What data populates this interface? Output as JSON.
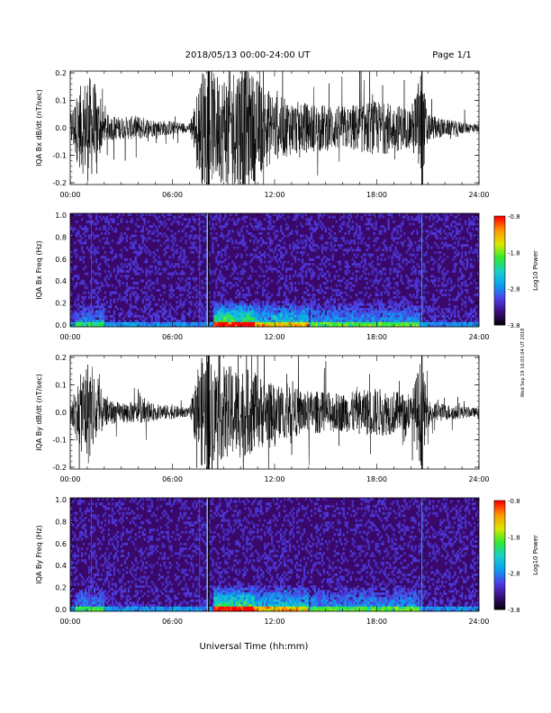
{
  "header": {
    "title": "2018/05/13  00:00-24:00 UT",
    "page": "Page 1/1",
    "side_stamp": "Wed Sep 19 16:03:04 UT 2018"
  },
  "x_axis": {
    "label": "Universal Time (hh:mm)",
    "ticks": [
      "00:00",
      "06:00",
      "12:00",
      "18:00",
      "24:00"
    ]
  },
  "colors": {
    "waveform": "#000000",
    "spectrogram_background": "#3a0868",
    "colorscale": [
      "#000000",
      "#3a0c7a",
      "#4f3ee6",
      "#0aa0f0",
      "#17d0c8",
      "#30ea30",
      "#dce600",
      "#ff9800",
      "#ff0000"
    ]
  },
  "chart_data": [
    {
      "type": "line",
      "panel": "bx-waveform",
      "ylabel": "IQA Bx dB/dt (nT/sec)",
      "ylim": [
        -0.2,
        0.2
      ],
      "y_ticks": [
        "0.2",
        "0.1",
        "0.0",
        "-0.1",
        "-0.2"
      ],
      "xlim": [
        0,
        24
      ],
      "x_unit": "hours UT",
      "envelope": {
        "x": [
          0,
          0.5,
          1,
          1.5,
          2,
          3,
          4,
          5,
          6,
          7,
          7.8,
          8.2,
          9,
          10,
          11,
          12,
          13,
          14,
          16,
          18,
          19,
          20,
          20.6,
          21,
          22,
          24
        ],
        "amplitude": [
          0.06,
          0.14,
          0.2,
          0.16,
          0.05,
          0.04,
          0.045,
          0.03,
          0.025,
          0.015,
          0.22,
          0.2,
          0.2,
          0.25,
          0.18,
          0.12,
          0.1,
          0.09,
          0.08,
          0.1,
          0.09,
          0.07,
          0.22,
          0.05,
          0.03,
          0.015
        ]
      }
    },
    {
      "type": "heatmap",
      "panel": "bx-spectrogram",
      "ylabel": "IQA Bx Freq (Hz)",
      "ylim": [
        0.0,
        1.0
      ],
      "y_ticks": [
        "1.0",
        "0.8",
        "0.6",
        "0.4",
        "0.2",
        "0.0"
      ],
      "xlim": [
        0,
        24
      ],
      "colorbar": {
        "label": "Log10 Power",
        "range": [
          -3.8,
          -0.8
        ],
        "ticks": [
          "-0.8",
          "-1.8",
          "-2.8",
          "-3.8"
        ]
      }
    },
    {
      "type": "line",
      "panel": "by-waveform",
      "ylabel": "IQA By dB/dt (nT/sec)",
      "ylim": [
        -0.2,
        0.2
      ],
      "y_ticks": [
        "0.2",
        "0.1",
        "0.0",
        "-0.1",
        "-0.2"
      ],
      "xlim": [
        0,
        24
      ],
      "x_unit": "hours UT",
      "envelope": {
        "x": [
          0,
          0.5,
          1,
          1.5,
          2,
          3,
          4,
          5,
          6,
          7,
          7.8,
          8.2,
          9,
          10,
          11,
          12,
          13,
          14,
          16,
          18,
          19,
          20,
          20.6,
          21,
          22,
          24
        ],
        "amplitude": [
          0.05,
          0.12,
          0.2,
          0.14,
          0.05,
          0.035,
          0.04,
          0.03,
          0.025,
          0.015,
          0.22,
          0.2,
          0.17,
          0.17,
          0.14,
          0.1,
          0.09,
          0.08,
          0.07,
          0.09,
          0.08,
          0.06,
          0.2,
          0.045,
          0.03,
          0.015
        ]
      }
    },
    {
      "type": "heatmap",
      "panel": "by-spectrogram",
      "ylabel": "IQA By Freq (Hz)",
      "ylim": [
        0.0,
        1.0
      ],
      "y_ticks": [
        "1.0",
        "0.8",
        "0.6",
        "0.4",
        "0.2",
        "0.0"
      ],
      "xlim": [
        0,
        24
      ],
      "colorbar": {
        "label": "Log10 Power",
        "range": [
          -3.8,
          -0.8
        ],
        "ticks": [
          "-0.8",
          "-1.8",
          "-2.8",
          "-3.8"
        ]
      }
    }
  ]
}
